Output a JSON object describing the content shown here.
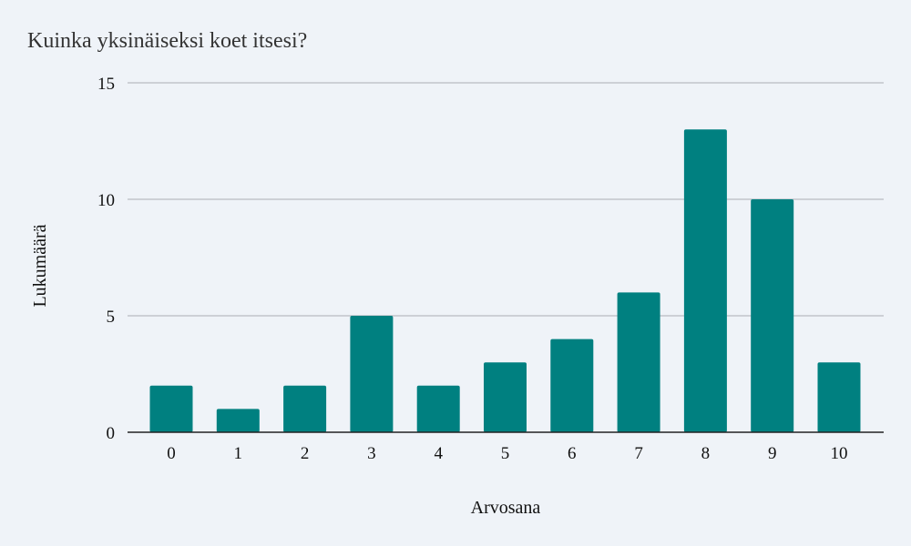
{
  "chart_data": {
    "type": "bar",
    "title": "Kuinka yksinäiseksi koet itsesi?",
    "xlabel": "Arvosana",
    "ylabel": "Lukumäärä",
    "categories": [
      "0",
      "1",
      "2",
      "3",
      "4",
      "5",
      "6",
      "7",
      "8",
      "9",
      "10"
    ],
    "values": [
      2,
      1,
      2,
      5,
      2,
      3,
      4,
      6,
      13,
      10,
      3
    ],
    "ylim": [
      0,
      15
    ],
    "yticks": [
      0,
      5,
      10,
      15
    ],
    "grid": true,
    "legend": "none",
    "bar_color": "#008080"
  }
}
